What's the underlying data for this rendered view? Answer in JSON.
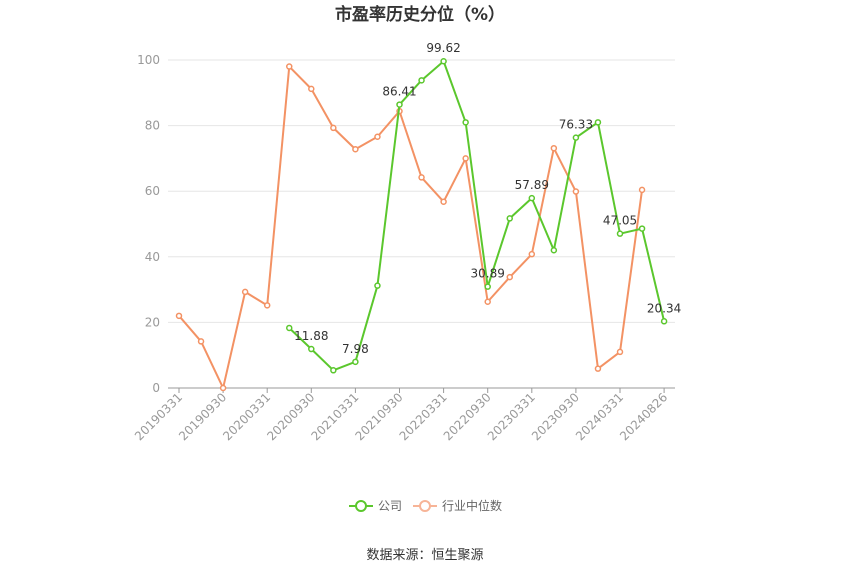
{
  "chart_data": {
    "type": "line",
    "title": "市盈率历史分位（%）",
    "xlabel": "",
    "ylabel": "",
    "ylim": [
      0,
      100
    ],
    "yticks": [
      0,
      20,
      40,
      60,
      80,
      100
    ],
    "grid": true,
    "legend_position": "bottom",
    "x": [
      "20190331",
      "20190630",
      "20190930",
      "20191231",
      "20200331",
      "20200630",
      "20200930",
      "20201231",
      "20210331",
      "20210630",
      "20210930",
      "20211231",
      "20220331",
      "20220630",
      "20220930",
      "20221231",
      "20230331",
      "20230630",
      "20230930",
      "20231231",
      "20240331",
      "20240630",
      "20240826"
    ],
    "x_tick_labels": [
      "20190331",
      "20190930",
      "20200331",
      "20200930",
      "20210331",
      "20210930",
      "20220331",
      "20220930",
      "20230331",
      "20230930",
      "20240331",
      "20240826"
    ],
    "x_tick_label_index": [
      0,
      2,
      4,
      6,
      8,
      10,
      12,
      14,
      16,
      18,
      20,
      22
    ],
    "series": [
      {
        "name": "公司",
        "color": "#5bc72d",
        "values": [
          null,
          null,
          null,
          null,
          null,
          18.3,
          11.88,
          5.4,
          7.98,
          31.2,
          86.41,
          93.8,
          99.62,
          81.0,
          30.89,
          51.7,
          57.89,
          42.0,
          76.33,
          81.0,
          47.05,
          48.6,
          20.34
        ],
        "labels": [
          null,
          null,
          null,
          null,
          null,
          null,
          "11.88",
          null,
          "7.98",
          null,
          "86.41",
          null,
          "99.62",
          null,
          "30.89",
          null,
          "57.89",
          null,
          "76.33",
          null,
          "47.05",
          null,
          "20.34"
        ]
      },
      {
        "name": "行业中位数",
        "color": "#f39264",
        "values": [
          22.0,
          14.2,
          0.0,
          29.3,
          25.2,
          98.0,
          91.2,
          79.3,
          72.8,
          76.6,
          84.4,
          64.2,
          56.8,
          70.0,
          26.3,
          33.8,
          40.8,
          73.1,
          59.9,
          5.9,
          11.0,
          60.4,
          null
        ]
      }
    ]
  },
  "legend": {
    "company_label": "公司",
    "industry_label": "行业中位数"
  },
  "footer": {
    "source": "数据来源：恒生聚源"
  }
}
